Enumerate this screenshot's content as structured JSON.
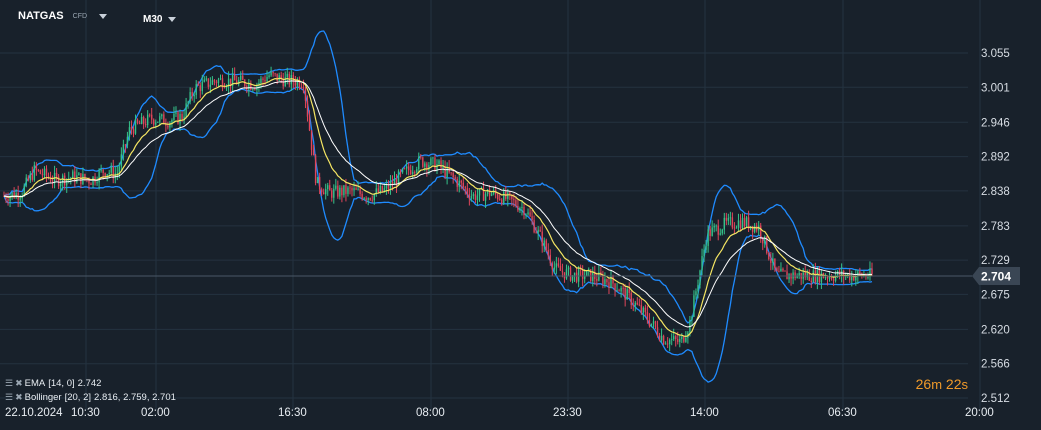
{
  "symbol": {
    "name": "NATGAS",
    "type": "CFD"
  },
  "timeframe": "M30",
  "indicators": [
    {
      "label": "EMA",
      "params": "[14, 0]",
      "values": "2.742"
    },
    {
      "label": "Bollinger",
      "params": "[20, 2]",
      "values": "2.816,  2.759,  2.701"
    }
  ],
  "countdown": {
    "minutes": "26",
    "minutes_unit": "m",
    "seconds": "22",
    "seconds_unit": "s"
  },
  "colors": {
    "background": "#18212b",
    "grid": "#243240",
    "candle_up": "#35c28a",
    "candle_down": "#e0455a",
    "bollinger": "#1f8bff",
    "ema_fast": "#f5e663",
    "ema_slow": "#ffffff",
    "price_line": "#4a5867",
    "price_tag": "#3a4654",
    "countdown": "#f09a2a"
  },
  "chart_data": {
    "type": "candlestick",
    "y_ticks": [
      "3.055",
      "3.001",
      "2.946",
      "2.892",
      "2.838",
      "2.783",
      "2.729",
      "2.675",
      "2.620",
      "2.566",
      "2.512"
    ],
    "ylim": [
      2.512,
      3.055
    ],
    "current_price": "2.704",
    "x_labels": [
      "22.10.2024",
      "10:30",
      "02:00",
      "16:30",
      "08:00",
      "23:30",
      "14:00",
      "06:30",
      "20:00"
    ],
    "close_path": [
      [
        0,
        2.83
      ],
      [
        0.02,
        2.835
      ],
      [
        0.035,
        2.87
      ],
      [
        0.06,
        2.855
      ],
      [
        0.08,
        2.86
      ],
      [
        0.1,
        2.855
      ],
      [
        0.115,
        2.87
      ],
      [
        0.13,
        2.865
      ],
      [
        0.145,
        2.935
      ],
      [
        0.17,
        2.952
      ],
      [
        0.19,
        2.948
      ],
      [
        0.205,
        2.955
      ],
      [
        0.22,
        3.0
      ],
      [
        0.245,
        3.012
      ],
      [
        0.27,
        3.01
      ],
      [
        0.29,
        3.005
      ],
      [
        0.305,
        3.02
      ],
      [
        0.325,
        3.012
      ],
      [
        0.345,
        3.01
      ],
      [
        0.36,
        2.85
      ],
      [
        0.375,
        2.835
      ],
      [
        0.4,
        2.838
      ],
      [
        0.42,
        2.83
      ],
      [
        0.44,
        2.84
      ],
      [
        0.46,
        2.865
      ],
      [
        0.48,
        2.885
      ],
      [
        0.5,
        2.878
      ],
      [
        0.52,
        2.855
      ],
      [
        0.54,
        2.83
      ],
      [
        0.56,
        2.835
      ],
      [
        0.58,
        2.825
      ],
      [
        0.6,
        2.81
      ],
      [
        0.62,
        2.76
      ],
      [
        0.635,
        2.715
      ],
      [
        0.655,
        2.705
      ],
      [
        0.675,
        2.705
      ],
      [
        0.7,
        2.695
      ],
      [
        0.72,
        2.67
      ],
      [
        0.74,
        2.64
      ],
      [
        0.76,
        2.605
      ],
      [
        0.78,
        2.6
      ],
      [
        0.79,
        2.63
      ],
      [
        0.81,
        2.77
      ],
      [
        0.83,
        2.785
      ],
      [
        0.85,
        2.79
      ],
      [
        0.87,
        2.78
      ],
      [
        0.89,
        2.705
      ]
    ]
  }
}
